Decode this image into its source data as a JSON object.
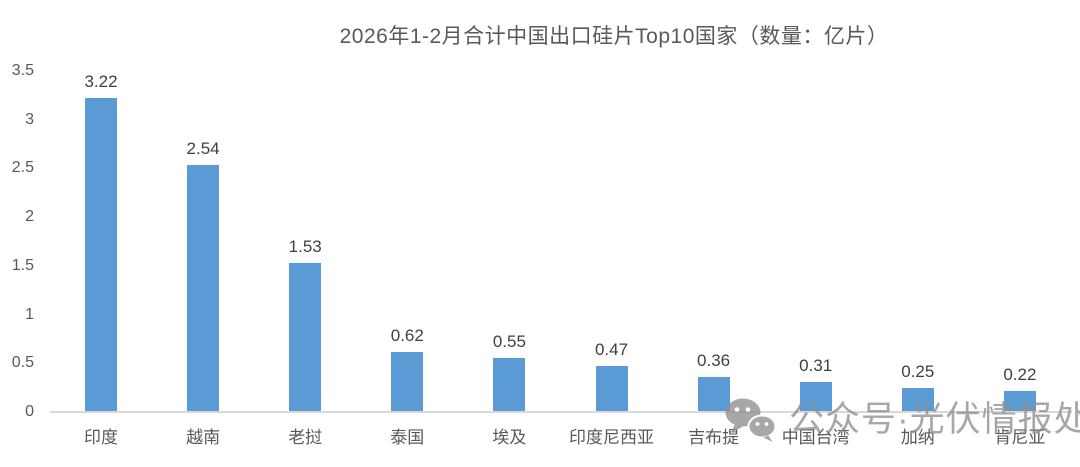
{
  "chart_data": {
    "type": "bar",
    "title": "2026年1-2月合计中国出口硅片Top10国家（数量：亿片）",
    "categories": [
      "印度",
      "越南",
      "老挝",
      "泰国",
      "埃及",
      "印度尼西亚",
      "吉布提",
      "中国台湾",
      "加纳",
      "肯尼亚"
    ],
    "values": [
      3.22,
      2.54,
      1.53,
      0.62,
      0.55,
      0.47,
      0.36,
      0.31,
      0.25,
      0.22
    ],
    "value_labels": [
      "3.22",
      "2.54",
      "1.53",
      "0.62",
      "0.55",
      "0.47",
      "0.36",
      "0.31",
      "0.25",
      "0.22"
    ],
    "xlabel": "",
    "ylabel": "",
    "ylim": [
      0,
      3.5
    ],
    "yticks": [
      0,
      0.5,
      1,
      1.5,
      2,
      2.5,
      3,
      3.5
    ],
    "ytick_labels": [
      "0",
      "0.5",
      "1",
      "1.5",
      "2",
      "2.5",
      "3",
      "3.5"
    ],
    "grid": false,
    "legend": false,
    "bar_color": "#5B9BD5",
    "axis_line_color": "#d9d9d9",
    "title_color": "#595959",
    "label_color": "#404040"
  },
  "watermark": {
    "icon": "wechat-icon",
    "text": "公众号·光伏情报处",
    "color": "#8f8f8f"
  }
}
